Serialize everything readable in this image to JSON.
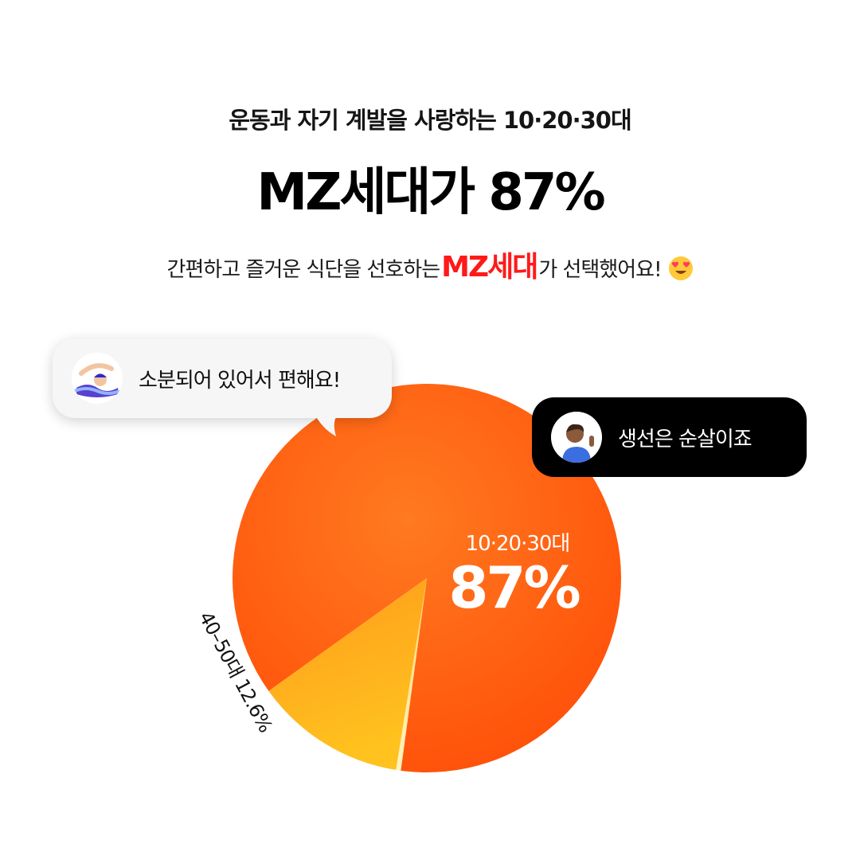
{
  "header": {
    "subtitle": "운동과 자기 계발을 사랑하는 10·20·30대",
    "title": "MZ세대가 87%",
    "desc_before": "간편하고 즐거운 식단을 선호하는 ",
    "desc_highlight": "MZ세대",
    "desc_after": "가 선택했어요!",
    "emoji": "heart-eyes-emoji",
    "highlight_color": "#ff1a1a"
  },
  "bubbles": {
    "left": {
      "text": "소분되어 있어서 편해요!",
      "avatar": "swimmer-icon"
    },
    "right": {
      "text": "생선은 순살이죠",
      "avatar": "person-waving-icon"
    }
  },
  "chart_data": {
    "type": "pie",
    "slices": [
      {
        "label": "10·20·30대",
        "value": 87,
        "display": "87%",
        "color": "#ff5a10"
      },
      {
        "label": "40–50대",
        "value": 12.6,
        "display": "40–50대 12.6%",
        "color": "#ffae1a"
      },
      {
        "label": "",
        "value": 0.4,
        "color": "#fff0b0"
      }
    ],
    "labels": {
      "main_category": "10·20·30대",
      "main_value": "87%",
      "side": "40–50대 12.6%"
    }
  }
}
